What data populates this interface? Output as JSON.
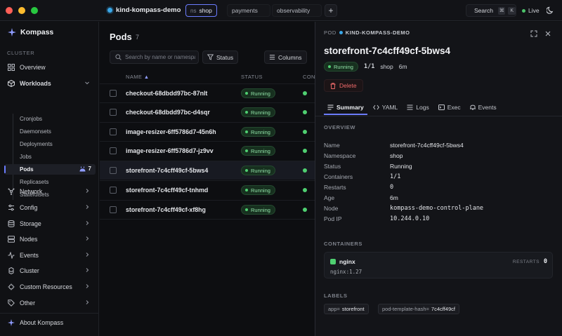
{
  "titlebar": {
    "traffic_colors": [
      "#fe5f57",
      "#febc2e",
      "#28c840"
    ],
    "context": "kind-kompass-demo",
    "namespace_tabs": [
      {
        "prefix": "ns",
        "label": "shop",
        "active": true
      },
      {
        "prefix": "",
        "label": "payments",
        "active": false
      },
      {
        "prefix": "",
        "label": "observability",
        "active": false
      }
    ],
    "add_tab": "+",
    "search_label": "Search",
    "search_kbd": [
      "⌘",
      "K"
    ],
    "live_label": "Live"
  },
  "sidebar": {
    "brand": "Kompass",
    "cluster_label": "CLUSTER",
    "overview": "Overview",
    "workloads": "Workloads",
    "workload_items": [
      "Cronjobs",
      "Daemonsets",
      "Deployments",
      "Jobs",
      "Pods",
      "Replicasets",
      "Statefulsets"
    ],
    "pods_count": "7",
    "groups": [
      "Network",
      "Config",
      "Storage",
      "Nodes",
      "Events",
      "Cluster",
      "Custom Resources",
      "Other"
    ],
    "about": "About Kompass"
  },
  "main": {
    "title": "Pods",
    "count": "7",
    "search_placeholder": "Search by name or namespace",
    "status_btn": "Status",
    "columns_btn": "Columns",
    "col_name": "NAME",
    "col_status": "STATUS",
    "col_containers": "CONTAINERS",
    "rows": [
      {
        "name": "checkout-68dbdd97bc-87nlt",
        "status": "Running"
      },
      {
        "name": "checkout-68dbdd97bc-d4sqr",
        "status": "Running"
      },
      {
        "name": "image-resizer-6ff5786d7-45n6h",
        "status": "Running"
      },
      {
        "name": "image-resizer-6ff5786d7-jz9vv",
        "status": "Running"
      },
      {
        "name": "storefront-7c4cff49cf-5bws4",
        "status": "Running"
      },
      {
        "name": "storefront-7c4cff49cf-tnhmd",
        "status": "Running"
      },
      {
        "name": "storefront-7c4cff49cf-xf8hg",
        "status": "Running"
      }
    ]
  },
  "detail": {
    "kicker": "POD",
    "context": "KIND-KOMPASS-DEMO",
    "title": "storefront-7c4cff49cf-5bws4",
    "status": "Running",
    "ready": "1/1",
    "namespace": "shop",
    "age": "6m",
    "delete_label": "Delete",
    "tabs": [
      "Summary",
      "YAML",
      "Logs",
      "Exec",
      "Events"
    ],
    "overview_label": "OVERVIEW",
    "fields": [
      {
        "k": "Name",
        "v": "storefront-7c4cff49cf-5bws4"
      },
      {
        "k": "Namespace",
        "v": "shop"
      },
      {
        "k": "Status",
        "v": "Running"
      },
      {
        "k": "Containers",
        "v": "1/1"
      },
      {
        "k": "Restarts",
        "v": "0"
      },
      {
        "k": "Age",
        "v": "6m"
      },
      {
        "k": "Node",
        "v": "kompass-demo-control-plane"
      },
      {
        "k": "Pod IP",
        "v": "10.244.0.10"
      }
    ],
    "containers_label": "CONTAINERS",
    "container": {
      "name": "nginx",
      "image": "nginx:1.27",
      "restarts_label": "RESTARTS",
      "restarts": "0"
    },
    "labels_label": "LABELS",
    "labels": [
      {
        "k": "app=",
        "v": "storefront"
      },
      {
        "k": "pod-template-hash=",
        "v": "7c4cff49cf"
      }
    ]
  }
}
